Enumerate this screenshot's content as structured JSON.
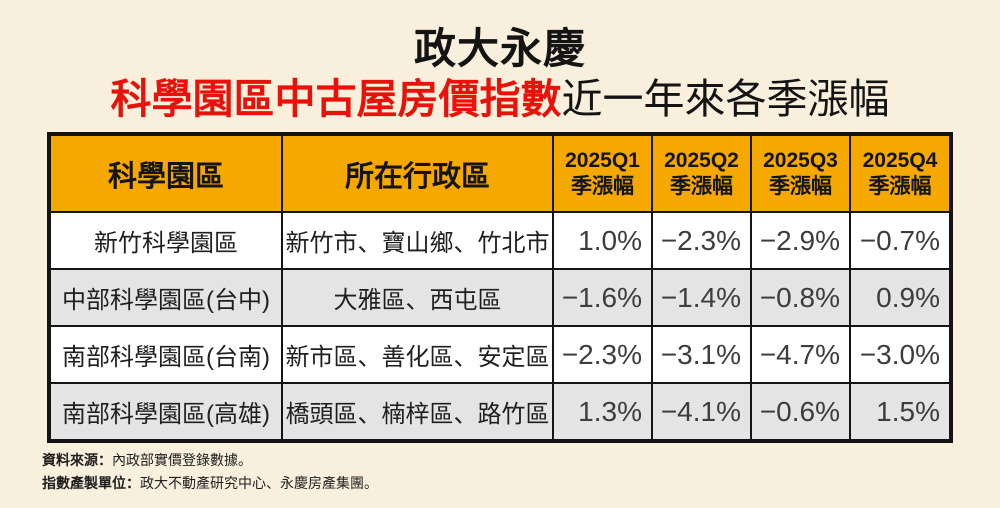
{
  "title": {
    "line1": "政大永慶",
    "line2_red": "科學園區中古屋房價指數",
    "line2_black": "近一年來各季漲幅"
  },
  "table": {
    "header": {
      "col1": "科學園區",
      "col2": "所在行政區",
      "quarters": [
        {
          "line1": "2025Q1",
          "line2": "季漲幅"
        },
        {
          "line1": "2025Q2",
          "line2": "季漲幅"
        },
        {
          "line1": "2025Q3",
          "line2": "季漲幅"
        },
        {
          "line1": "2025Q4",
          "line2": "季漲幅"
        }
      ]
    },
    "rows": [
      {
        "park": "新竹科學園區",
        "districts": "新竹市、寶山鄉、竹北市",
        "values": [
          "1.0%",
          "−2.3%",
          "−2.9%",
          "−0.7%"
        ]
      },
      {
        "park": "中部科學園區(台中)",
        "districts": "大雅區、西屯區",
        "values": [
          "−1.6%",
          "−1.4%",
          "−0.8%",
          "0.9%"
        ]
      },
      {
        "park": "南部科學園區(台南)",
        "districts": "新市區、善化區、安定區",
        "values": [
          "−2.3%",
          "−3.1%",
          "−4.7%",
          "−3.0%"
        ]
      },
      {
        "park": "南部科學園區(高雄)",
        "districts": "橋頭區、楠梓區、路竹區",
        "values": [
          "1.3%",
          "−4.1%",
          "−0.6%",
          "1.5%"
        ]
      }
    ]
  },
  "footer": {
    "source_label": "資料來源：",
    "source_text": "內政部實價登錄數據。",
    "unit_label": "指數產製單位：",
    "unit_text": "政大不動產研究中心、永慶房產集團。"
  },
  "colors": {
    "background": "#f8efdc",
    "header_yellow": "#f5a800",
    "title_red": "#e8120b",
    "row_gray": "#e4e4e4",
    "border_black": "#141414"
  },
  "chart_data": {
    "type": "table",
    "title": "政大永慶 科學園區中古屋房價指數 近一年來各季漲幅",
    "columns": [
      "科學園區",
      "所在行政區",
      "2025Q1 季漲幅",
      "2025Q2 季漲幅",
      "2025Q3 季漲幅",
      "2025Q4 季漲幅"
    ],
    "rows": [
      [
        "新竹科學園區",
        "新竹市、寶山鄉、竹北市",
        "1.0%",
        "-2.3%",
        "-2.9%",
        "-0.7%"
      ],
      [
        "中部科學園區(台中)",
        "大雅區、西屯區",
        "-1.6%",
        "-1.4%",
        "-0.8%",
        "0.9%"
      ],
      [
        "南部科學園區(台南)",
        "新市區、善化區、安定區",
        "-2.3%",
        "-3.1%",
        "-4.7%",
        "-3.0%"
      ],
      [
        "南部科學園區(高雄)",
        "橋頭區、楠梓區、路竹區",
        "1.3%",
        "-4.1%",
        "-0.6%",
        "1.5%"
      ]
    ],
    "notes": [
      "資料來源：內政部實價登錄數據。",
      "指數產製單位：政大不動產研究中心、永慶房產集團。"
    ]
  }
}
